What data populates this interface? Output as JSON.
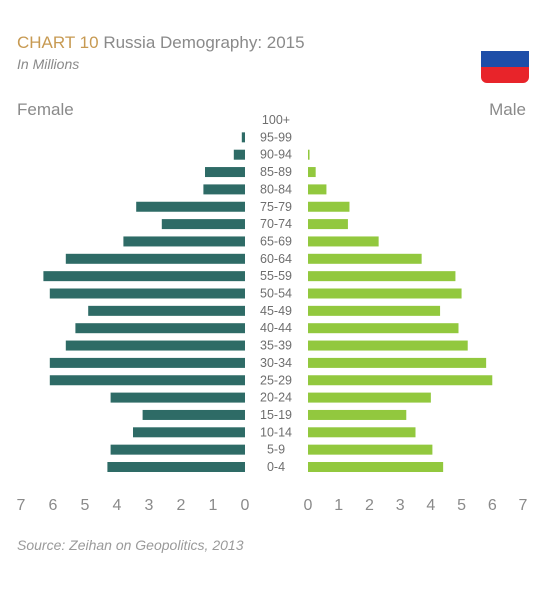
{
  "header": {
    "chart_number": "CHART 10",
    "title": "Russia Demography: 2015",
    "subtitle": "In Millions"
  },
  "flag": {
    "name": "russia-flag-icon",
    "colors": [
      "#ffffff",
      "#1e4ea8",
      "#e8242a"
    ]
  },
  "colors": {
    "female": "#2e6b66",
    "male": "#92c83e",
    "text": "#8a8a8a",
    "accent": "#c79a52"
  },
  "source": "Source: Zeihan on Geopolitics, 2013",
  "chart_data": {
    "type": "bar",
    "orientation": "population-pyramid",
    "categories": [
      "100+",
      "95-99",
      "90-94",
      "85-89",
      "80-84",
      "75-79",
      "70-74",
      "65-69",
      "60-64",
      "55-59",
      "50-54",
      "45-49",
      "40-44",
      "35-39",
      "30-34",
      "25-29",
      "20-24",
      "15-19",
      "10-14",
      "5-9",
      "0-4"
    ],
    "series": [
      {
        "name": "Female",
        "values": [
          0,
          0.1,
          0.35,
          1.25,
          1.3,
          3.4,
          2.6,
          3.8,
          5.6,
          6.3,
          6.1,
          4.9,
          5.3,
          5.6,
          6.1,
          6.1,
          4.2,
          3.2,
          3.5,
          4.2,
          4.3
        ]
      },
      {
        "name": "Male",
        "values": [
          0,
          0,
          0.05,
          0.25,
          0.6,
          1.35,
          1.3,
          2.3,
          3.7,
          4.8,
          5.0,
          4.3,
          4.9,
          5.2,
          5.8,
          6.0,
          4.0,
          3.2,
          3.5,
          4.05,
          4.4
        ]
      }
    ],
    "xlim": [
      0,
      7
    ],
    "x_ticks": [
      "0",
      "1",
      "2",
      "3",
      "4",
      "5",
      "6",
      "7"
    ],
    "female_label": "Female",
    "male_label": "Male",
    "grid": false
  }
}
